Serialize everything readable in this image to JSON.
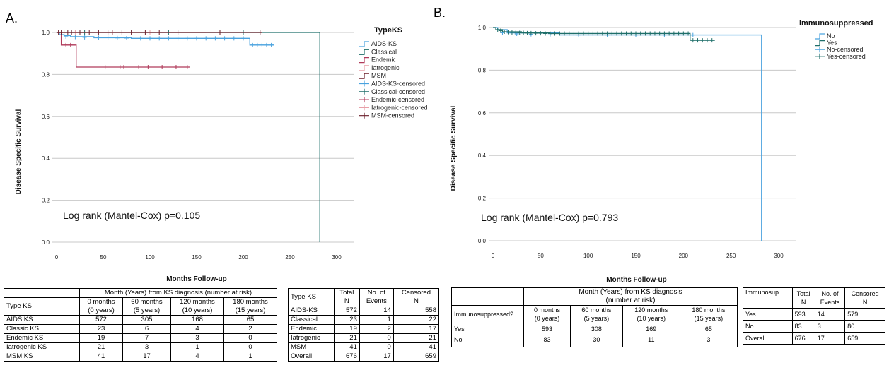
{
  "panel_a": {
    "label": "A.",
    "logrank": "Log rank (Mantel-Cox) p=0.105",
    "risk_table": {
      "header_main": "Month (Years) from KS diagnosis (number at risk)",
      "row_header": "Type KS",
      "cols": [
        [
          "0 months",
          "(0 years)"
        ],
        [
          "60 months",
          "(5 years)"
        ],
        [
          "120 months",
          "(10 years)"
        ],
        [
          "180 months",
          "(15 years)"
        ]
      ],
      "rows": [
        {
          "name": "AIDS KS",
          "v": [
            "572",
            "305",
            "168",
            "65"
          ]
        },
        {
          "name": "Classic KS",
          "v": [
            "23",
            "6",
            "4",
            "2"
          ]
        },
        {
          "name": "Endemic KS",
          "v": [
            "19",
            "7",
            "3",
            "0"
          ]
        },
        {
          "name": "Iatrogenic KS",
          "v": [
            "21",
            "3",
            "1",
            "0"
          ]
        },
        {
          "name": "MSM KS",
          "v": [
            "41",
            "17",
            "4",
            "1"
          ]
        }
      ]
    },
    "events_table": {
      "headers": [
        "Type KS",
        [
          "Total",
          "N"
        ],
        [
          "No. of",
          "Events"
        ],
        [
          "Censored",
          "N"
        ]
      ],
      "rows": [
        [
          "AIDS-KS",
          "572",
          "14",
          "558"
        ],
        [
          "Classical",
          "23",
          "1",
          "22"
        ],
        [
          "Endemic",
          "19",
          "2",
          "17"
        ],
        [
          "Iatrogenic",
          "21",
          "0",
          "21"
        ],
        [
          "MSM",
          "41",
          "0",
          "41"
        ],
        [
          "Overall",
          "676",
          "17",
          "659"
        ]
      ]
    }
  },
  "panel_b": {
    "label": "B.",
    "logrank": "Log rank (Mantel-Cox) p=0.793",
    "risk_table": {
      "header_main": [
        "Month (Years) from KS diagnosis",
        "(number at risk)"
      ],
      "row_header": "Immunosuppressed?",
      "cols": [
        [
          "0 months",
          "(0 years)"
        ],
        [
          "60 months",
          "(5 years)"
        ],
        [
          "120 months",
          "(10 years)"
        ],
        [
          "180 months",
          "(15 years)"
        ]
      ],
      "rows": [
        {
          "name": "Yes",
          "v": [
            "593",
            "308",
            "169",
            "65"
          ]
        },
        {
          "name": "No",
          "v": [
            "83",
            "30",
            "11",
            "3"
          ]
        }
      ]
    },
    "events_table": {
      "headers": [
        "Immunosup.",
        [
          "Total",
          "N"
        ],
        [
          "No. of",
          "Events"
        ],
        [
          "Censored",
          "N"
        ]
      ],
      "rows": [
        [
          "Yes",
          "593",
          "14",
          "579"
        ],
        [
          "No",
          "83",
          "3",
          "80"
        ],
        [
          "Overall",
          "676",
          "17",
          "659"
        ]
      ]
    }
  },
  "chart_data": [
    {
      "type": "line",
      "subtype": "kaplan-meier",
      "xlabel": "Months Follow-up",
      "ylabel": "Disease Specific Survival",
      "xlim": [
        0,
        300
      ],
      "ylim": [
        0,
        1
      ],
      "xticks": [
        "0",
        "50",
        "100",
        "150",
        "200",
        "250",
        "300"
      ],
      "yticks": [
        "0.0",
        "0.2",
        "0.4",
        "0.6",
        "0.8",
        "1.0"
      ],
      "legend_title": "TypeKS",
      "legend_position": "right",
      "legend": [
        {
          "name": "AIDS-KS",
          "kind": "line",
          "color": "#4aa3df"
        },
        {
          "name": "Classical",
          "kind": "line",
          "color": "#1f6f6a"
        },
        {
          "name": "Endemic",
          "kind": "line",
          "color": "#b03a5a"
        },
        {
          "name": "Iatrogenic",
          "kind": "line",
          "color": "#e8a0a8"
        },
        {
          "name": "MSM",
          "kind": "line",
          "color": "#6b1f2a"
        },
        {
          "name": "AIDS-KS-censored",
          "kind": "censor",
          "color": "#4aa3df"
        },
        {
          "name": "Classical-censored",
          "kind": "censor",
          "color": "#1f6f6a"
        },
        {
          "name": "Endemic-censored",
          "kind": "censor",
          "color": "#b03a5a"
        },
        {
          "name": "Iatrogenic-censored",
          "kind": "censor",
          "color": "#e8a0a8"
        },
        {
          "name": "MSM-censored",
          "kind": "censor",
          "color": "#6b1f2a"
        }
      ],
      "series": [
        {
          "name": "AIDS-KS",
          "color": "#4aa3df",
          "steps": [
            [
              0,
              1.0
            ],
            [
              3,
              0.99
            ],
            [
              8,
              0.985
            ],
            [
              15,
              0.98
            ],
            [
              40,
              0.975
            ],
            [
              80,
              0.972
            ],
            [
              206,
              0.972
            ],
            [
              207,
              0.94
            ],
            [
              233,
              0.94
            ]
          ],
          "censored": [
            [
              10,
              0.98
            ],
            [
              20,
              0.978
            ],
            [
              30,
              0.977
            ],
            [
              45,
              0.975
            ],
            [
              55,
              0.975
            ],
            [
              65,
              0.974
            ],
            [
              75,
              0.973
            ],
            [
              90,
              0.972
            ],
            [
              100,
              0.972
            ],
            [
              110,
              0.972
            ],
            [
              120,
              0.972
            ],
            [
              130,
              0.972
            ],
            [
              140,
              0.972
            ],
            [
              150,
              0.972
            ],
            [
              160,
              0.972
            ],
            [
              170,
              0.972
            ],
            [
              180,
              0.972
            ],
            [
              190,
              0.972
            ],
            [
              200,
              0.972
            ],
            [
              210,
              0.94
            ],
            [
              215,
              0.94
            ],
            [
              220,
              0.94
            ],
            [
              225,
              0.94
            ],
            [
              230,
              0.94
            ]
          ]
        },
        {
          "name": "Classical",
          "color": "#1f6f6a",
          "steps": [
            [
              0,
              1.0
            ],
            [
              282,
              1.0
            ],
            [
              282,
              0.0
            ]
          ],
          "censored": [
            [
              30,
              1.0
            ],
            [
              60,
              1.0
            ],
            [
              120,
              1.0
            ],
            [
              200,
              1.0
            ]
          ]
        },
        {
          "name": "Endemic",
          "color": "#b03a5a",
          "steps": [
            [
              0,
              1.0
            ],
            [
              5,
              1.0
            ],
            [
              5,
              0.94
            ],
            [
              21,
              0.94
            ],
            [
              21,
              0.835
            ],
            [
              143,
              0.835
            ]
          ],
          "censored": [
            [
              10,
              0.94
            ],
            [
              15,
              0.94
            ],
            [
              52,
              0.835
            ],
            [
              68,
              0.835
            ],
            [
              72,
              0.835
            ],
            [
              88,
              0.835
            ],
            [
              98,
              0.835
            ],
            [
              113,
              0.835
            ],
            [
              128,
              0.835
            ],
            [
              140,
              0.835
            ]
          ]
        },
        {
          "name": "Iatrogenic",
          "color": "#e8a0a8",
          "steps": [
            [
              0,
              1.0
            ],
            [
              160,
              1.0
            ]
          ],
          "censored": [
            [
              20,
              1.0
            ],
            [
              60,
              1.0
            ],
            [
              100,
              1.0
            ]
          ]
        },
        {
          "name": "MSM",
          "color": "#6b1f2a",
          "steps": [
            [
              0,
              1.0
            ],
            [
              220,
              1.0
            ]
          ],
          "censored": [
            [
              2,
              1.0
            ],
            [
              5,
              1.0
            ],
            [
              8,
              1.0
            ],
            [
              12,
              1.0
            ],
            [
              16,
              1.0
            ],
            [
              25,
              1.0
            ],
            [
              35,
              1.0
            ],
            [
              45,
              1.0
            ],
            [
              55,
              1.0
            ],
            [
              70,
              1.0
            ],
            [
              80,
              1.0
            ],
            [
              95,
              1.0
            ],
            [
              110,
              1.0
            ],
            [
              130,
              1.0
            ],
            [
              175,
              1.0
            ],
            [
              218,
              1.0
            ]
          ]
        }
      ]
    },
    {
      "type": "line",
      "subtype": "kaplan-meier",
      "xlabel": "Months Follow-up",
      "ylabel": "Disease Specific Survival",
      "xlim": [
        0,
        300
      ],
      "ylim": [
        0,
        1
      ],
      "xticks": [
        "0",
        "50",
        "100",
        "150",
        "200",
        "250",
        "300"
      ],
      "yticks": [
        "0.0",
        "0.2",
        "0.4",
        "0.6",
        "0.8",
        "1.0"
      ],
      "legend_title": "Immunosuppressed",
      "legend_position": "right",
      "legend": [
        {
          "name": "No",
          "kind": "line",
          "color": "#4aa3df"
        },
        {
          "name": "Yes",
          "kind": "line",
          "color": "#1f6f6a"
        },
        {
          "name": "No-censored",
          "kind": "censor",
          "color": "#4aa3df"
        },
        {
          "name": "Yes-censored",
          "kind": "censor",
          "color": "#1f6f6a"
        }
      ],
      "series": [
        {
          "name": "No",
          "color": "#4aa3df",
          "steps": [
            [
              0,
              1.0
            ],
            [
              5,
              0.99
            ],
            [
              15,
              0.975
            ],
            [
              70,
              0.965
            ],
            [
              282,
              0.965
            ],
            [
              282,
              0.0
            ]
          ],
          "censored": [
            [
              10,
              0.975
            ],
            [
              25,
              0.97
            ],
            [
              40,
              0.968
            ],
            [
              60,
              0.966
            ],
            [
              90,
              0.965
            ],
            [
              120,
              0.965
            ],
            [
              150,
              0.965
            ],
            [
              180,
              0.965
            ],
            [
              210,
              0.965
            ]
          ]
        },
        {
          "name": "Yes",
          "color": "#1f6f6a",
          "steps": [
            [
              0,
              1.0
            ],
            [
              3,
              0.99
            ],
            [
              10,
              0.98
            ],
            [
              30,
              0.975
            ],
            [
              60,
              0.972
            ],
            [
              206,
              0.972
            ],
            [
              207,
              0.94
            ],
            [
              233,
              0.94
            ]
          ],
          "censored": [
            [
              5,
              0.99
            ],
            [
              8,
              0.985
            ],
            [
              12,
              0.98
            ],
            [
              16,
              0.978
            ],
            [
              20,
              0.977
            ],
            [
              24,
              0.976
            ],
            [
              28,
              0.975
            ],
            [
              32,
              0.975
            ],
            [
              36,
              0.974
            ],
            [
              40,
              0.974
            ],
            [
              45,
              0.973
            ],
            [
              50,
              0.973
            ],
            [
              55,
              0.972
            ],
            [
              60,
              0.972
            ],
            [
              65,
              0.972
            ],
            [
              70,
              0.972
            ],
            [
              75,
              0.972
            ],
            [
              80,
              0.972
            ],
            [
              85,
              0.972
            ],
            [
              90,
              0.972
            ],
            [
              95,
              0.972
            ],
            [
              100,
              0.972
            ],
            [
              105,
              0.972
            ],
            [
              110,
              0.972
            ],
            [
              115,
              0.972
            ],
            [
              120,
              0.972
            ],
            [
              125,
              0.972
            ],
            [
              130,
              0.972
            ],
            [
              135,
              0.972
            ],
            [
              140,
              0.972
            ],
            [
              145,
              0.972
            ],
            [
              150,
              0.972
            ],
            [
              155,
              0.972
            ],
            [
              160,
              0.972
            ],
            [
              165,
              0.972
            ],
            [
              170,
              0.972
            ],
            [
              175,
              0.972
            ],
            [
              180,
              0.972
            ],
            [
              185,
              0.972
            ],
            [
              190,
              0.972
            ],
            [
              195,
              0.972
            ],
            [
              200,
              0.972
            ],
            [
              205,
              0.972
            ],
            [
              210,
              0.94
            ],
            [
              215,
              0.94
            ],
            [
              220,
              0.94
            ],
            [
              225,
              0.94
            ],
            [
              230,
              0.94
            ]
          ]
        }
      ]
    }
  ]
}
